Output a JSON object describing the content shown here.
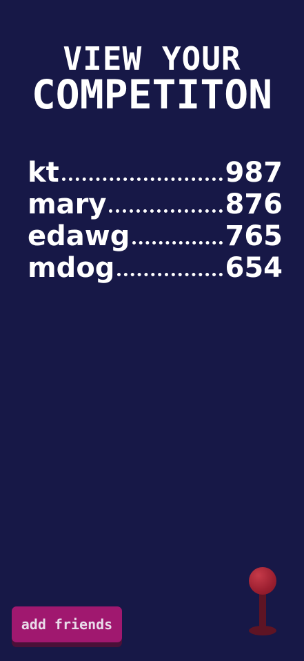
{
  "title": {
    "line1": "VIEW YOUR",
    "line2": "COMPETITON"
  },
  "leaderboard": [
    {
      "name": "kt",
      "score": "987"
    },
    {
      "name": "mary",
      "score": "876"
    },
    {
      "name": "edawg",
      "score": "765"
    },
    {
      "name": "mdog",
      "score": "654"
    }
  ],
  "actions": {
    "add_friends_label": "add friends"
  },
  "icons": {
    "joystick": "joystick-icon"
  },
  "colors": {
    "background": "#171847",
    "button": "#a0186f",
    "joystick": "#9b1f30"
  }
}
